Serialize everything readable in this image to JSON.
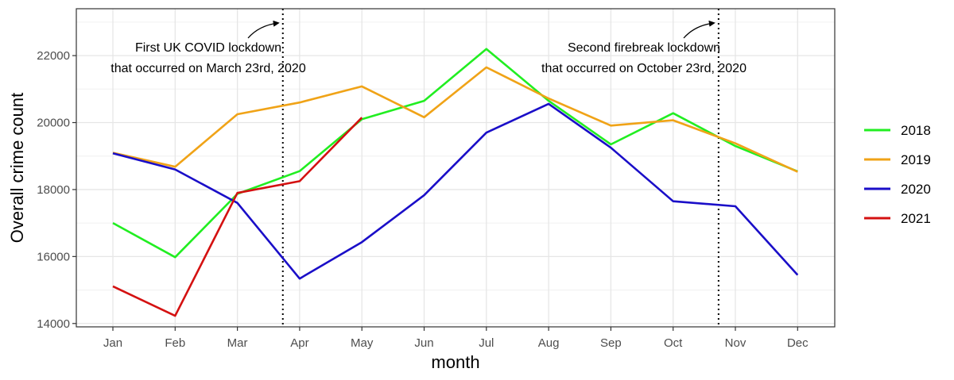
{
  "chart_data": {
    "type": "line",
    "categories": [
      "Jan",
      "Feb",
      "Mar",
      "Apr",
      "May",
      "Jun",
      "Jul",
      "Aug",
      "Sep",
      "Oct",
      "Nov",
      "Dec"
    ],
    "xlabel": "month",
    "ylabel": "Overall crime count",
    "ylim": [
      13900,
      23400
    ],
    "yticks": [
      14000,
      16000,
      18000,
      20000,
      22000
    ],
    "yticks_labels": [
      "14000",
      "16000",
      "18000",
      "20000",
      "22000"
    ],
    "grid": true,
    "legend_position": "right",
    "series": [
      {
        "name": "2018",
        "color": "#21ee21",
        "values": [
          17000,
          15980,
          17870,
          18550,
          20100,
          20650,
          22200,
          20650,
          19350,
          20280,
          19300,
          18540
        ]
      },
      {
        "name": "2019",
        "color": "#f0a317",
        "values": [
          19100,
          18680,
          20250,
          20600,
          21080,
          20160,
          21650,
          20720,
          19910,
          20070,
          19380,
          18530
        ]
      },
      {
        "name": "2020",
        "color": "#1a0ec8",
        "values": [
          19080,
          18600,
          17600,
          15340,
          16430,
          17830,
          19700,
          20560,
          19250,
          17650,
          17500,
          15450
        ]
      },
      {
        "name": "2021",
        "color": "#d41111",
        "values": [
          15110,
          14230,
          17900,
          18250,
          20150,
          null,
          null,
          null,
          null,
          null,
          null,
          null
        ]
      }
    ],
    "vlines": [
      {
        "at_category": "Mar",
        "offset": 0.73
      },
      {
        "at_category": "Oct",
        "offset": 0.73
      }
    ],
    "annotations": [
      {
        "lines": [
          "First UK COVID lockdown",
          "that occurred on March 23rd, 2020"
        ]
      },
      {
        "lines": [
          "Second firebreak lockdown",
          "that occurred on October 23rd, 2020"
        ]
      }
    ]
  }
}
